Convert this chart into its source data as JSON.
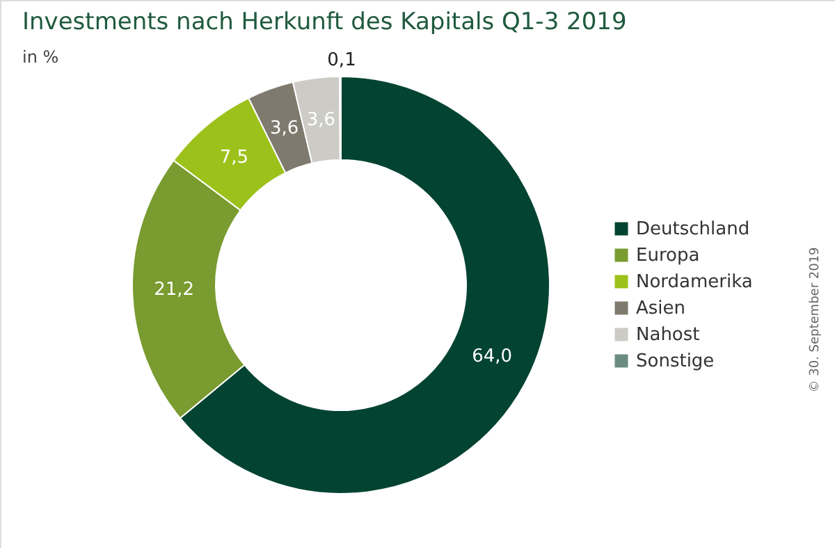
{
  "chart_data": {
    "type": "donut",
    "title": "Investments nach Herkunft des Kapitals Q1-3 2019",
    "subtitle": "in %",
    "categories": [
      "Deutschland",
      "Europa",
      "Nordamerika",
      "Asien",
      "Nahost",
      "Sonstige"
    ],
    "values": [
      64.0,
      21.2,
      7.5,
      3.6,
      3.6,
      0.1
    ],
    "colors": [
      "#034331",
      "#799b2f",
      "#9cc11a",
      "#7f7a6e",
      "#cccbc6",
      "#6a8c80"
    ],
    "value_labels": [
      "64,0",
      "21,2",
      "7,5",
      "3,6",
      "3,6",
      "0,1"
    ],
    "legend": "right",
    "annotations": [
      "© 30. September 2019"
    ]
  }
}
